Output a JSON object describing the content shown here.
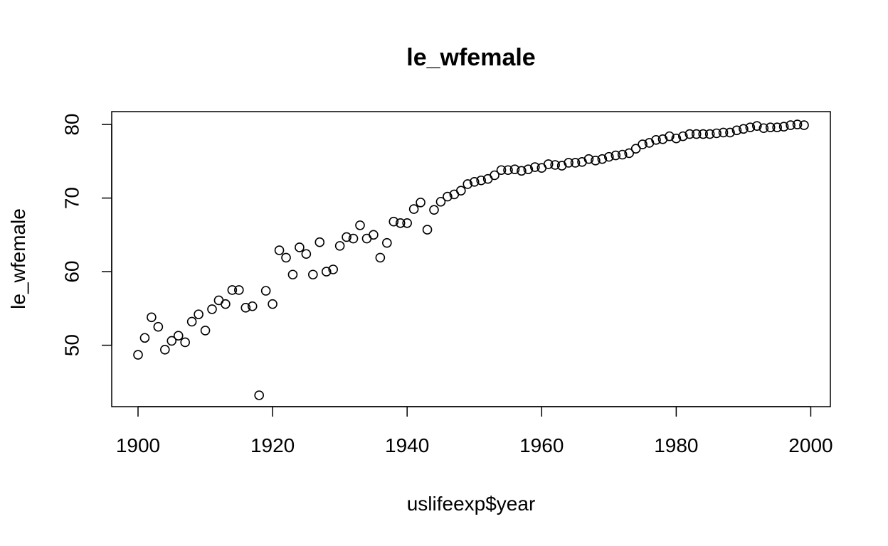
{
  "chart_data": {
    "type": "scatter",
    "title": "le_wfemale",
    "xlabel": "uslifeexp$year",
    "ylabel": "le_wfemale",
    "xlim": [
      1900,
      1999
    ],
    "ylim": [
      43.2,
      80.2
    ],
    "xticks": [
      1900,
      1920,
      1940,
      1960,
      1980,
      2000
    ],
    "yticks": [
      50,
      60,
      70,
      80
    ],
    "xtick_labels": [
      "1900",
      "1920",
      "1940",
      "1960",
      "1980",
      "2000"
    ],
    "ytick_labels": [
      "50",
      "60",
      "70",
      "80"
    ],
    "grid": false,
    "marker": "open-circle",
    "x": [
      1900,
      1901,
      1902,
      1903,
      1904,
      1905,
      1906,
      1907,
      1908,
      1909,
      1910,
      1911,
      1912,
      1913,
      1914,
      1915,
      1916,
      1917,
      1918,
      1919,
      1920,
      1921,
      1922,
      1923,
      1924,
      1925,
      1926,
      1927,
      1928,
      1929,
      1930,
      1931,
      1932,
      1933,
      1934,
      1935,
      1936,
      1937,
      1938,
      1939,
      1940,
      1941,
      1942,
      1943,
      1944,
      1945,
      1946,
      1947,
      1948,
      1949,
      1950,
      1951,
      1952,
      1953,
      1954,
      1955,
      1956,
      1957,
      1958,
      1959,
      1960,
      1961,
      1962,
      1963,
      1964,
      1965,
      1966,
      1967,
      1968,
      1969,
      1970,
      1971,
      1972,
      1973,
      1974,
      1975,
      1976,
      1977,
      1978,
      1979,
      1980,
      1981,
      1982,
      1983,
      1984,
      1985,
      1986,
      1987,
      1988,
      1989,
      1990,
      1991,
      1992,
      1993,
      1994,
      1995,
      1996,
      1997,
      1998,
      1999
    ],
    "y": [
      48.7,
      51.0,
      53.8,
      52.5,
      49.4,
      50.6,
      51.3,
      50.4,
      53.2,
      54.2,
      52.0,
      54.9,
      56.1,
      55.6,
      57.5,
      57.5,
      55.1,
      55.3,
      43.2,
      57.4,
      55.6,
      62.9,
      61.9,
      59.6,
      63.3,
      62.4,
      59.6,
      64.0,
      60.0,
      60.3,
      63.5,
      64.7,
      64.5,
      66.3,
      64.5,
      65.0,
      61.9,
      63.9,
      66.8,
      66.6,
      66.6,
      68.5,
      69.4,
      65.7,
      68.4,
      69.5,
      70.2,
      70.5,
      71.0,
      71.9,
      72.2,
      72.4,
      72.6,
      73.1,
      73.8,
      73.8,
      73.9,
      73.7,
      73.9,
      74.2,
      74.1,
      74.6,
      74.5,
      74.4,
      74.8,
      74.8,
      74.9,
      75.3,
      75.1,
      75.3,
      75.6,
      75.8,
      75.9,
      76.1,
      76.7,
      77.3,
      77.5,
      77.9,
      78.0,
      78.4,
      78.1,
      78.4,
      78.7,
      78.7,
      78.7,
      78.7,
      78.8,
      78.9,
      78.9,
      79.2,
      79.4,
      79.6,
      79.8,
      79.5,
      79.6,
      79.6,
      79.7,
      79.9,
      80.0,
      79.9
    ]
  }
}
